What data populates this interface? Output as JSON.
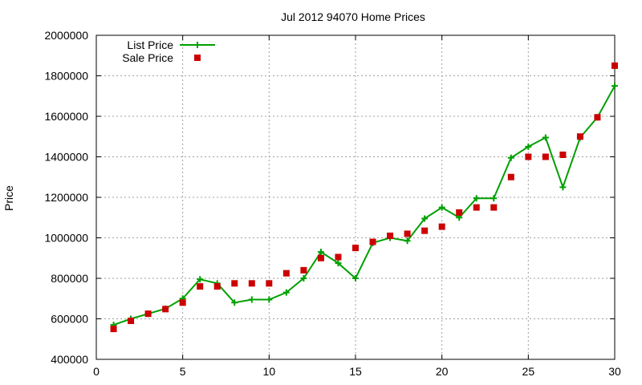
{
  "chart_data": {
    "type": "line",
    "title": "Jul 2012 94070 Home Prices",
    "xlabel": "",
    "ylabel": "Price",
    "xlim": [
      0,
      30
    ],
    "ylim": [
      400000,
      2000000
    ],
    "x_ticks": [
      "0",
      "5",
      "10",
      "15",
      "20",
      "25",
      "30"
    ],
    "y_ticks": [
      "400000",
      "600000",
      "800000",
      "1000000",
      "1200000",
      "1400000",
      "1600000",
      "1800000",
      "2000000"
    ],
    "grid": true,
    "legend_position": "top-left",
    "series": [
      {
        "name": "List Price",
        "style": "line-with-plus-markers",
        "color": "#00a000",
        "x": [
          1,
          2,
          3,
          4,
          5,
          6,
          7,
          8,
          9,
          10,
          11,
          12,
          13,
          14,
          15,
          16,
          17,
          18,
          19,
          20,
          21,
          22,
          23,
          24,
          25,
          26,
          27,
          28,
          29,
          30
        ],
        "values": [
          570000,
          600000,
          625000,
          650000,
          700000,
          795000,
          775000,
          680000,
          695000,
          695000,
          730000,
          800000,
          930000,
          875000,
          800000,
          975000,
          1000000,
          985000,
          1095000,
          1150000,
          1100000,
          1195000,
          1195000,
          1395000,
          1450000,
          1495000,
          1250000,
          1495000,
          1595000,
          1750000
        ]
      },
      {
        "name": "Sale Price",
        "style": "square-markers",
        "color": "#cc0000",
        "x": [
          1,
          2,
          3,
          4,
          5,
          6,
          7,
          8,
          9,
          10,
          11,
          12,
          13,
          14,
          15,
          16,
          17,
          18,
          19,
          20,
          21,
          22,
          23,
          24,
          25,
          26,
          27,
          28,
          29,
          30
        ],
        "values": [
          550000,
          590000,
          625000,
          648000,
          680000,
          760000,
          760000,
          775000,
          775000,
          775000,
          825000,
          840000,
          900000,
          905000,
          950000,
          980000,
          1010000,
          1020000,
          1035000,
          1055000,
          1125000,
          1150000,
          1150000,
          1300000,
          1400000,
          1400000,
          1410000,
          1500000,
          1595000,
          1850000
        ]
      }
    ]
  }
}
